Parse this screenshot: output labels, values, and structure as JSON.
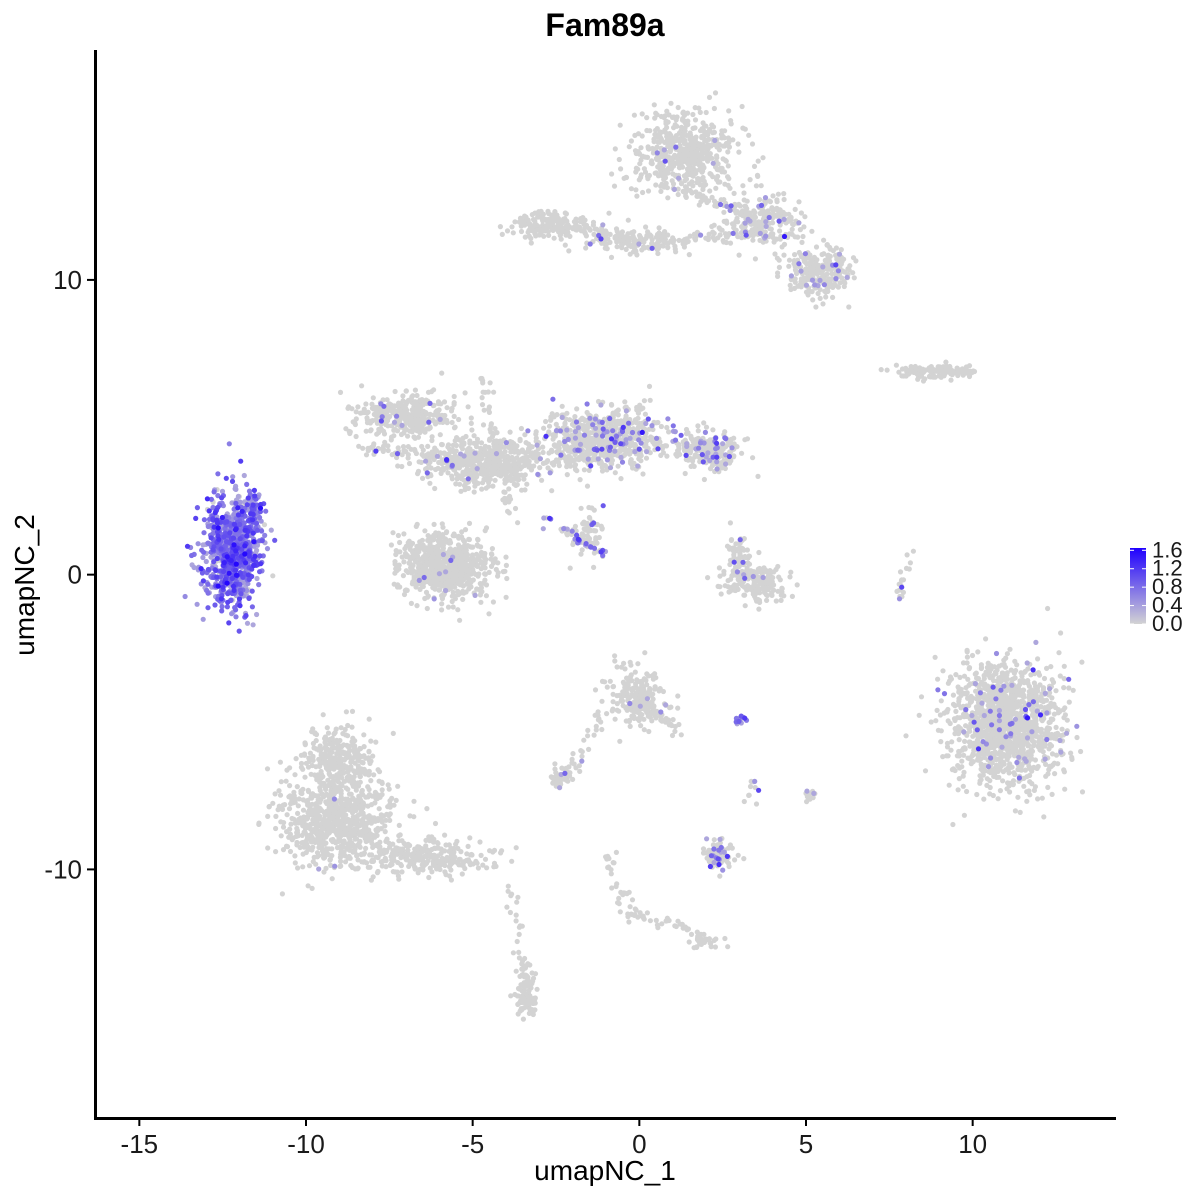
{
  "chart_data": {
    "type": "scatter",
    "title": "Fam89a",
    "xlabel": "umapNC_1",
    "ylabel": "umapNC_2",
    "xlim": [
      -16.3,
      14.3
    ],
    "ylim": [
      -18.4,
      17.8
    ],
    "xticks": [
      -15,
      -10,
      -5,
      0,
      5,
      10
    ],
    "yticks": [
      -10,
      0,
      10
    ],
    "grid": false,
    "legend": {
      "position": "right",
      "type": "colorbar",
      "min": 0.0,
      "max": 1.65,
      "breaks": [
        "0.0",
        "0.4",
        "0.8",
        "1.2",
        "1.6"
      ],
      "color_low": "#d3d3d3",
      "color_high": "#1f00ff"
    },
    "background_color": "#d3d3d3",
    "clusters": [
      {
        "x": [
          -12.2,
          0.75
        ],
        "y": [
          0.8,
          1.7
        ],
        "n": 900,
        "expr_rate": 0.95,
        "expr_mean": 0.7
      },
      {
        "x": [
          -11.6,
          0.25
        ],
        "y": [
          2.2,
          0.4
        ],
        "n": 60,
        "expr_rate": 0.9,
        "expr_mean": 0.6
      },
      {
        "x": [
          -5.8,
          1.2
        ],
        "y": [
          0.3,
          1.0
        ],
        "n": 700,
        "expr_rate": 0.01,
        "expr_mean": 0.5
      },
      {
        "x": [
          -7.0,
          1.4
        ],
        "y": [
          5.4,
          0.7
        ],
        "n": 350,
        "expr_rate": 0.03,
        "expr_mean": 0.5
      },
      {
        "x": [
          -4.5,
          1.6
        ],
        "y": [
          3.8,
          0.8
        ],
        "n": 550,
        "expr_rate": 0.02,
        "expr_mean": 0.5
      },
      {
        "x": [
          -1.0,
          1.6
        ],
        "y": [
          4.6,
          0.9
        ],
        "n": 650,
        "expr_rate": 0.12,
        "expr_mean": 0.6
      },
      {
        "x": [
          2.0,
          0.9
        ],
        "y": [
          4.2,
          0.6
        ],
        "n": 250,
        "expr_rate": 0.15,
        "expr_mean": 0.6
      },
      {
        "x": [
          -1.5,
          0.4
        ],
        "y": [
          1.4,
          0.9
        ],
        "n": 60,
        "expr_rate": 0.2,
        "expr_mean": 0.6
      },
      {
        "x": [
          1.3,
          1.4
        ],
        "y": [
          14.3,
          1.2
        ],
        "n": 550,
        "expr_rate": 0.02,
        "expr_mean": 0.5
      },
      {
        "x": [
          3.6,
          1.1
        ],
        "y": [
          12.0,
          0.8
        ],
        "n": 250,
        "expr_rate": 0.08,
        "expr_mean": 0.6
      },
      {
        "x": [
          5.4,
          0.9
        ],
        "y": [
          10.3,
          0.8
        ],
        "n": 250,
        "expr_rate": 0.06,
        "expr_mean": 0.6
      },
      {
        "x": [
          -2.7,
          1.0
        ],
        "y": [
          11.8,
          0.4
        ],
        "n": 150,
        "expr_rate": 0.0,
        "expr_mean": 0.5
      },
      {
        "x": [
          -0.1,
          1.6
        ],
        "y": [
          11.3,
          0.4
        ],
        "n": 120,
        "expr_rate": 0.05,
        "expr_mean": 0.5
      },
      {
        "x": [
          3.5,
          0.9
        ],
        "y": [
          -0.3,
          0.6
        ],
        "n": 180,
        "expr_rate": 0.03,
        "expr_mean": 0.5
      },
      {
        "x": [
          3.0,
          0.4
        ],
        "y": [
          0.6,
          0.7
        ],
        "n": 60,
        "expr_rate": 0.1,
        "expr_mean": 0.5
      },
      {
        "x": [
          10.9,
          1.5
        ],
        "y": [
          -5.1,
          1.9
        ],
        "n": 1300,
        "expr_rate": 0.05,
        "expr_mean": 0.6
      },
      {
        "x": [
          8.8,
          1.2
        ],
        "y": [
          6.9,
          0.2
        ],
        "n": 130,
        "expr_rate": 0.0,
        "expr_mean": 0.5
      },
      {
        "x": [
          -0.1,
          0.8
        ],
        "y": [
          -4.2,
          0.9
        ],
        "n": 220,
        "expr_rate": 0.02,
        "expr_mean": 0.5
      },
      {
        "x": [
          -9.1,
          1.5
        ],
        "y": [
          -8.3,
          1.4
        ],
        "n": 800,
        "expr_rate": 0.003,
        "expr_mean": 0.5
      },
      {
        "x": [
          -9.0,
          0.9
        ],
        "y": [
          -6.2,
          1.0
        ],
        "n": 250,
        "expr_rate": 0.0,
        "expr_mean": 0.5
      },
      {
        "x": [
          -6.5,
          1.8
        ],
        "y": [
          -9.6,
          0.5
        ],
        "n": 300,
        "expr_rate": 0.0,
        "expr_mean": 0.5
      },
      {
        "x": [
          -3.4,
          0.3
        ],
        "y": [
          -14.3,
          0.7
        ],
        "n": 100,
        "expr_rate": 0.0,
        "expr_mean": 0.5
      },
      {
        "x": [
          2.4,
          0.4
        ],
        "y": [
          -9.5,
          0.4
        ],
        "n": 90,
        "expr_rate": 0.15,
        "expr_mean": 0.6
      },
      {
        "x": [
          -2.4,
          0.3
        ],
        "y": [
          -6.9,
          0.3
        ],
        "n": 40,
        "expr_rate": 0.04,
        "expr_mean": 0.5
      },
      {
        "x": [
          1.9,
          0.35
        ],
        "y": [
          -12.4,
          0.25
        ],
        "n": 40,
        "expr_rate": 0.0,
        "expr_mean": 0.5
      },
      {
        "x": [
          3.0,
          0.2
        ],
        "y": [
          -4.9,
          0.1
        ],
        "n": 14,
        "expr_rate": 0.8,
        "expr_mean": 0.7
      },
      {
        "x": [
          5.1,
          0.2
        ],
        "y": [
          -7.5,
          0.2
        ],
        "n": 14,
        "expr_rate": 0.2,
        "expr_mean": 0.5
      }
    ],
    "trails": [
      {
        "from": [
          -8.5,
          4.3
        ],
        "to": [
          -5.3,
          4.0
        ],
        "n": 60,
        "expr_rate": 0.03
      },
      {
        "from": [
          -4.7,
          6.9
        ],
        "to": [
          -3.9,
          1.9
        ],
        "n": 50,
        "expr_rate": 0.02
      },
      {
        "from": [
          -2.7,
          1.9
        ],
        "to": [
          -1.1,
          0.7
        ],
        "n": 35,
        "expr_rate": 0.6
      },
      {
        "from": [
          -2.5,
          3.8
        ],
        "to": [
          -0.6,
          4.3
        ],
        "n": 40,
        "expr_rate": 0.08
      },
      {
        "from": [
          -3.1,
          12.3
        ],
        "to": [
          0.4,
          11.1
        ],
        "n": 60,
        "expr_rate": 0.03
      },
      {
        "from": [
          0.4,
          11.2
        ],
        "to": [
          2.8,
          11.6
        ],
        "n": 45,
        "expr_rate": 0.06
      },
      {
        "from": [
          1.3,
          13.0
        ],
        "to": [
          3.1,
          12.4
        ],
        "n": 35,
        "expr_rate": 0.05
      },
      {
        "from": [
          -1.0,
          -4.6
        ],
        "to": [
          -2.2,
          -6.8
        ],
        "n": 30,
        "expr_rate": 0.02
      },
      {
        "from": [
          0.4,
          -4.6
        ],
        "to": [
          1.3,
          -5.5
        ],
        "n": 25,
        "expr_rate": 0.04
      },
      {
        "from": [
          -1.0,
          -9.5
        ],
        "to": [
          -0.3,
          -11.6
        ],
        "n": 30,
        "expr_rate": 0.0
      },
      {
        "from": [
          -0.3,
          -11.4
        ],
        "to": [
          1.9,
          -12.2
        ],
        "n": 35,
        "expr_rate": 0.0
      },
      {
        "from": [
          -3.9,
          -10.3
        ],
        "to": [
          -3.4,
          -13.6
        ],
        "n": 25,
        "expr_rate": 0.0
      },
      {
        "from": [
          8.1,
          0.9
        ],
        "to": [
          7.8,
          -1.0
        ],
        "n": 18,
        "expr_rate": 0.15
      },
      {
        "from": [
          3.3,
          -8.4
        ],
        "to": [
          3.4,
          -7.0
        ],
        "n": 10,
        "expr_rate": 0.1
      }
    ]
  }
}
